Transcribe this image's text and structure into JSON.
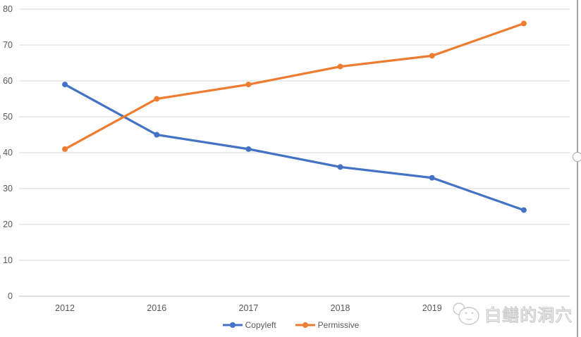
{
  "chart_data": {
    "type": "line",
    "title": "",
    "xlabel": "",
    "ylabel": "",
    "categories": [
      "2012",
      "2016",
      "2017",
      "2018",
      "2019",
      ""
    ],
    "series": [
      {
        "name": "Copyleft",
        "color": "#4472C4",
        "values": [
          59,
          45,
          41,
          36,
          33,
          24
        ]
      },
      {
        "name": "Permissive",
        "color": "#ED7D31",
        "values": [
          41,
          55,
          59,
          64,
          67,
          76
        ]
      }
    ],
    "ylim": [
      0,
      80
    ],
    "ytick_step": 10,
    "yticks": [
      0,
      10,
      20,
      30,
      40,
      50,
      60,
      70,
      80
    ],
    "grid": true,
    "legend_position": "bottom"
  },
  "colors": {
    "gridline": "#D9D9D9",
    "axis_line": "#BFBFBF",
    "tick_label": "#595959",
    "legend_label": "#595959",
    "selection_border": "#A6A6A6",
    "background": "#FFFFFF"
  },
  "watermark": {
    "text": "白鳝的洞穴"
  }
}
